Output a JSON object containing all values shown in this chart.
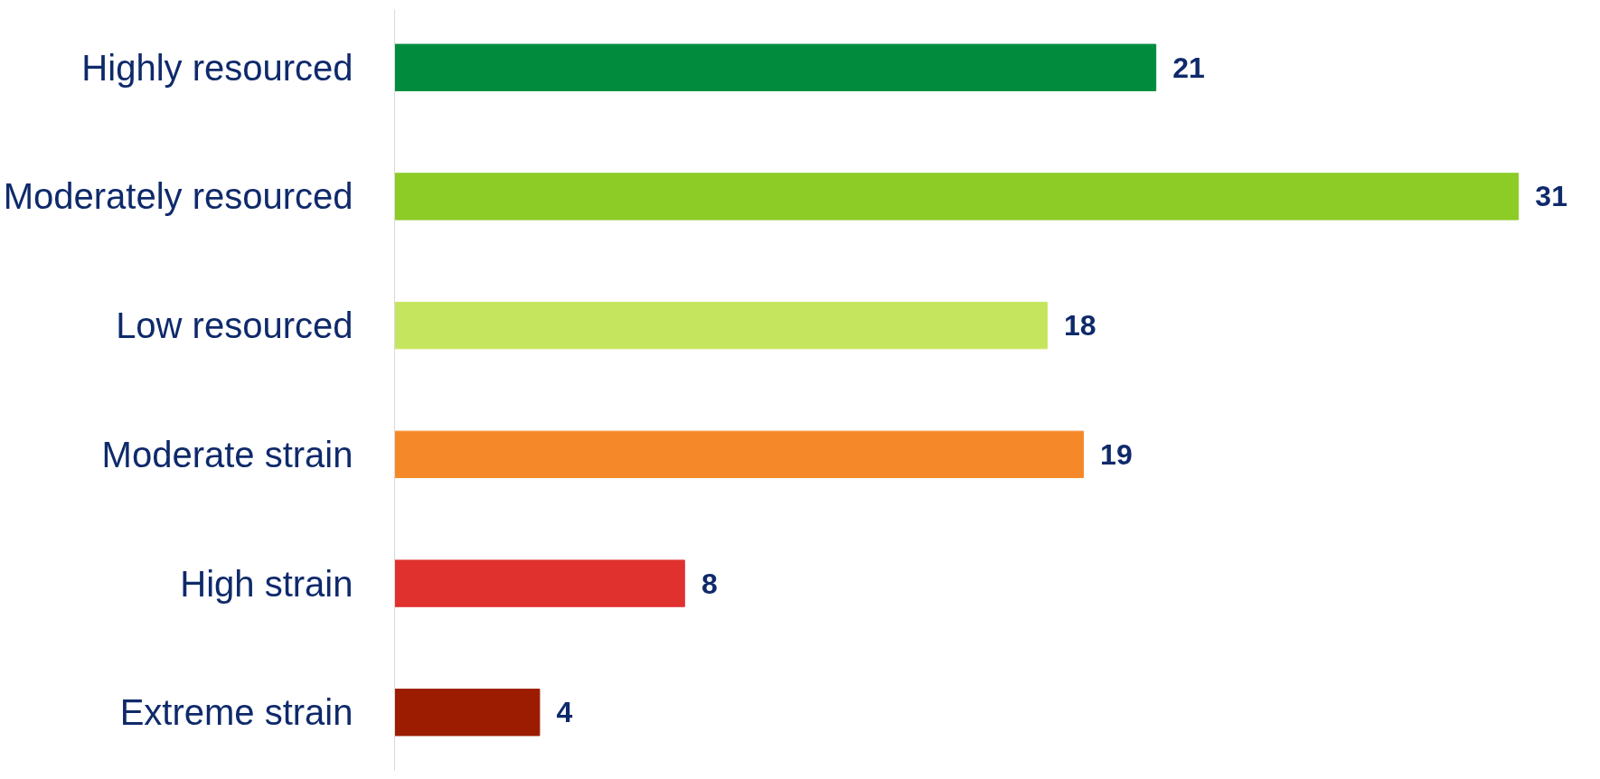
{
  "chart_data": {
    "type": "bar",
    "orientation": "horizontal",
    "categories": [
      "Highly resourced",
      "Moderately resourced",
      "Low resourced",
      "Moderate strain",
      "High strain",
      "Extreme strain"
    ],
    "values": [
      21,
      31,
      18,
      19,
      8,
      4
    ],
    "colors": [
      "#008c3c",
      "#8dcb27",
      "#c6e55e",
      "#f5892a",
      "#e0312f",
      "#9b1c00"
    ],
    "data_labels": true,
    "grid": false
  }
}
